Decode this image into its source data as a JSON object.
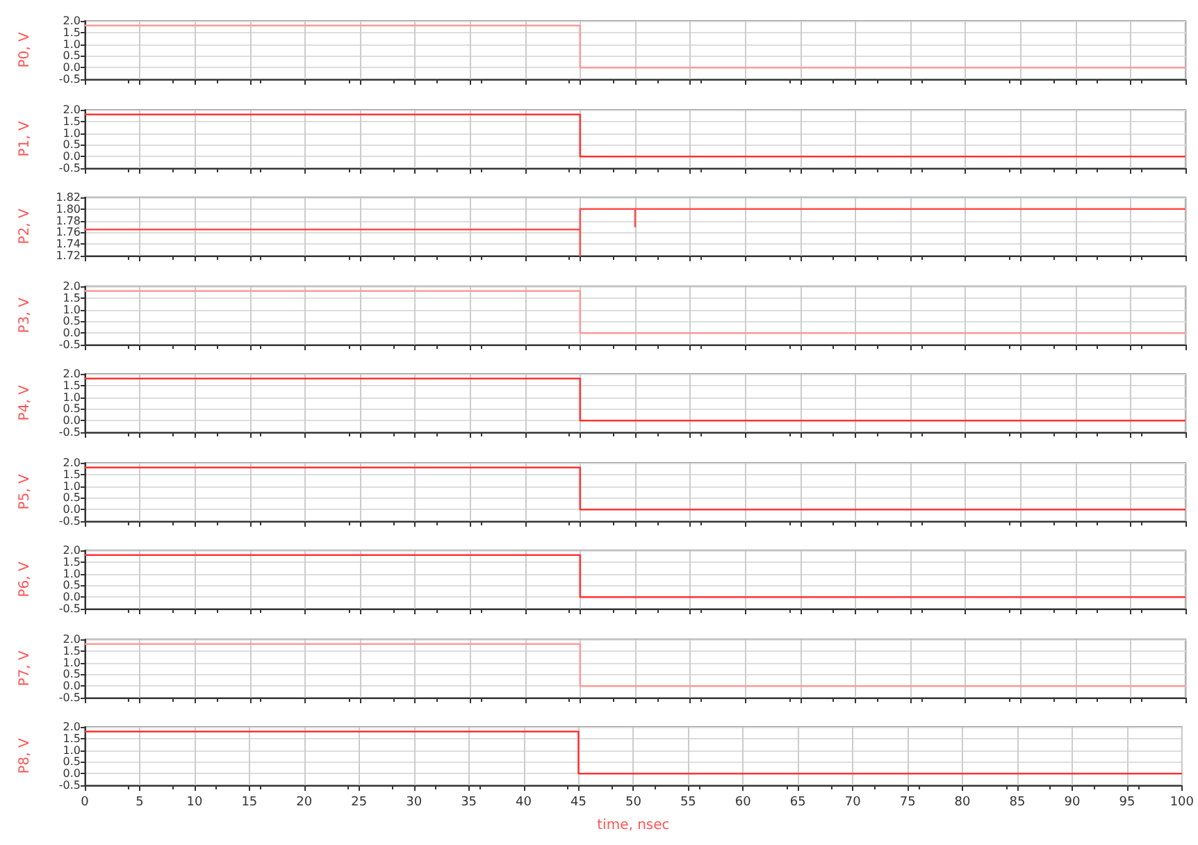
{
  "chart_data": [
    {
      "type": "line",
      "ylabel": "P0, V",
      "x": [
        0,
        45,
        45,
        100
      ],
      "series": [
        {
          "color": "#ff9999",
          "values": [
            1.8,
            1.8,
            0,
            0
          ]
        }
      ],
      "xlim": [
        0,
        100
      ],
      "xticks": [
        0,
        5,
        10,
        15,
        20,
        25,
        30,
        35,
        40,
        45,
        50,
        55,
        60,
        65,
        70,
        75,
        80,
        85,
        90,
        95,
        100
      ],
      "ylim": [
        -0.5,
        2.0
      ],
      "yticks": [
        {
          "value": -0.5,
          "label": "-0.5"
        },
        {
          "value": 0,
          "label": "0.0"
        },
        {
          "value": 0.5,
          "label": "0.5"
        },
        {
          "value": 1,
          "label": "1.0"
        },
        {
          "value": 1.5,
          "label": "1.5"
        },
        {
          "value": 2,
          "label": "2.0"
        }
      ],
      "grid": true,
      "tick_labels": "y"
    },
    {
      "type": "line",
      "ylabel": "P1, V",
      "x": [
        0,
        45,
        45,
        100
      ],
      "series": [
        {
          "color": "#ff3333",
          "values": [
            1.8,
            1.8,
            0,
            0
          ]
        }
      ],
      "xlim": [
        0,
        100
      ],
      "xticks": [
        0,
        5,
        10,
        15,
        20,
        25,
        30,
        35,
        40,
        45,
        50,
        55,
        60,
        65,
        70,
        75,
        80,
        85,
        90,
        95,
        100
      ],
      "ylim": [
        -0.5,
        2.0
      ],
      "yticks": [
        {
          "value": -0.5,
          "label": "-0.5"
        },
        {
          "value": 0,
          "label": "0.0"
        },
        {
          "value": 0.5,
          "label": "0.5"
        },
        {
          "value": 1,
          "label": "1.0"
        },
        {
          "value": 1.5,
          "label": "1.5"
        },
        {
          "value": 2,
          "label": "2.0"
        }
      ],
      "grid": true,
      "tick_labels": "y"
    },
    {
      "type": "line",
      "ylabel": "P2, V",
      "x": [
        0,
        45,
        45,
        45,
        50,
        50,
        50,
        100
      ],
      "series": [
        {
          "color": "#ff4d4d",
          "values": [
            1.765,
            1.765,
            1.72,
            1.8,
            1.8,
            1.77,
            1.8,
            1.8
          ]
        }
      ],
      "xlim": [
        0,
        100
      ],
      "xticks": [
        0,
        5,
        10,
        15,
        20,
        25,
        30,
        35,
        40,
        45,
        50,
        55,
        60,
        65,
        70,
        75,
        80,
        85,
        90,
        95,
        100
      ],
      "ylim": [
        1.72,
        1.82
      ],
      "yticks": [
        {
          "value": 1.72,
          "label": "1.72"
        },
        {
          "value": 1.74,
          "label": "1.74"
        },
        {
          "value": 1.76,
          "label": "1.76"
        },
        {
          "value": 1.78,
          "label": "1.78"
        },
        {
          "value": 1.8,
          "label": "1.80"
        },
        {
          "value": 1.82,
          "label": "1.82"
        }
      ],
      "grid": true,
      "tick_labels": "y"
    },
    {
      "type": "line",
      "ylabel": "P3, V",
      "x": [
        0,
        45,
        45,
        100
      ],
      "series": [
        {
          "color": "#ff9999",
          "values": [
            1.8,
            1.8,
            0,
            0
          ]
        }
      ],
      "xlim": [
        0,
        100
      ],
      "xticks": [
        0,
        5,
        10,
        15,
        20,
        25,
        30,
        35,
        40,
        45,
        50,
        55,
        60,
        65,
        70,
        75,
        80,
        85,
        90,
        95,
        100
      ],
      "ylim": [
        -0.5,
        2.0
      ],
      "yticks": [
        {
          "value": -0.5,
          "label": "-0.5"
        },
        {
          "value": 0,
          "label": "0.0"
        },
        {
          "value": 0.5,
          "label": "0.5"
        },
        {
          "value": 1,
          "label": "1.0"
        },
        {
          "value": 1.5,
          "label": "1.5"
        },
        {
          "value": 2,
          "label": "2.0"
        }
      ],
      "grid": true,
      "tick_labels": "y"
    },
    {
      "type": "line",
      "ylabel": "P4, V",
      "x": [
        0,
        45,
        45,
        100
      ],
      "series": [
        {
          "color": "#ff3333",
          "values": [
            1.8,
            1.8,
            0,
            0
          ]
        }
      ],
      "xlim": [
        0,
        100
      ],
      "xticks": [
        0,
        5,
        10,
        15,
        20,
        25,
        30,
        35,
        40,
        45,
        50,
        55,
        60,
        65,
        70,
        75,
        80,
        85,
        90,
        95,
        100
      ],
      "ylim": [
        -0.5,
        2.0
      ],
      "yticks": [
        {
          "value": -0.5,
          "label": "-0.5"
        },
        {
          "value": 0,
          "label": "0.0"
        },
        {
          "value": 0.5,
          "label": "0.5"
        },
        {
          "value": 1,
          "label": "1.0"
        },
        {
          "value": 1.5,
          "label": "1.5"
        },
        {
          "value": 2,
          "label": "2.0"
        }
      ],
      "grid": true,
      "tick_labels": "y"
    },
    {
      "type": "line",
      "ylabel": "P5, V",
      "x": [
        0,
        45,
        45,
        100
      ],
      "series": [
        {
          "color": "#ff3333",
          "values": [
            1.8,
            1.8,
            0,
            0
          ]
        }
      ],
      "xlim": [
        0,
        100
      ],
      "xticks": [
        0,
        5,
        10,
        15,
        20,
        25,
        30,
        35,
        40,
        45,
        50,
        55,
        60,
        65,
        70,
        75,
        80,
        85,
        90,
        95,
        100
      ],
      "ylim": [
        -0.5,
        2.0
      ],
      "yticks": [
        {
          "value": -0.5,
          "label": "-0.5"
        },
        {
          "value": 0,
          "label": "0.0"
        },
        {
          "value": 0.5,
          "label": "0.5"
        },
        {
          "value": 1,
          "label": "1.0"
        },
        {
          "value": 1.5,
          "label": "1.5"
        },
        {
          "value": 2,
          "label": "2.0"
        }
      ],
      "grid": true,
      "tick_labels": "y"
    },
    {
      "type": "line",
      "ylabel": "P6, V",
      "x": [
        0,
        45,
        45,
        100
      ],
      "series": [
        {
          "color": "#ff3333",
          "values": [
            1.8,
            1.8,
            0,
            0
          ]
        }
      ],
      "xlim": [
        0,
        100
      ],
      "xticks": [
        0,
        5,
        10,
        15,
        20,
        25,
        30,
        35,
        40,
        45,
        50,
        55,
        60,
        65,
        70,
        75,
        80,
        85,
        90,
        95,
        100
      ],
      "ylim": [
        -0.5,
        2.0
      ],
      "yticks": [
        {
          "value": -0.5,
          "label": "-0.5"
        },
        {
          "value": 0,
          "label": "0.0"
        },
        {
          "value": 0.5,
          "label": "0.5"
        },
        {
          "value": 1,
          "label": "1.0"
        },
        {
          "value": 1.5,
          "label": "1.5"
        },
        {
          "value": 2,
          "label": "2.0"
        }
      ],
      "grid": true,
      "tick_labels": "y"
    },
    {
      "type": "line",
      "ylabel": "P7, V",
      "x": [
        0,
        45,
        45,
        100
      ],
      "series": [
        {
          "color": "#ff9999",
          "values": [
            1.8,
            1.8,
            0,
            0
          ]
        }
      ],
      "xlim": [
        0,
        100
      ],
      "xticks": [
        0,
        5,
        10,
        15,
        20,
        25,
        30,
        35,
        40,
        45,
        50,
        55,
        60,
        65,
        70,
        75,
        80,
        85,
        90,
        95,
        100
      ],
      "ylim": [
        -0.5,
        2.0
      ],
      "yticks": [
        {
          "value": -0.5,
          "label": "-0.5"
        },
        {
          "value": 0,
          "label": "0.0"
        },
        {
          "value": 0.5,
          "label": "0.5"
        },
        {
          "value": 1,
          "label": "1.0"
        },
        {
          "value": 1.5,
          "label": "1.5"
        },
        {
          "value": 2,
          "label": "2.0"
        }
      ],
      "grid": true,
      "tick_labels": "y"
    },
    {
      "type": "line",
      "ylabel": "P8, V",
      "xlabel": "time, nsec",
      "x": [
        0,
        45,
        45,
        100
      ],
      "series": [
        {
          "color": "#ff3333",
          "values": [
            1.8,
            1.8,
            0,
            0
          ]
        }
      ],
      "xlim": [
        0,
        100
      ],
      "xticks": [
        0,
        5,
        10,
        15,
        20,
        25,
        30,
        35,
        40,
        45,
        50,
        55,
        60,
        65,
        70,
        75,
        80,
        85,
        90,
        95,
        100
      ],
      "ylim": [
        -0.5,
        2.0
      ],
      "yticks": [
        {
          "value": -0.5,
          "label": "-0.5"
        },
        {
          "value": 0,
          "label": "0.0"
        },
        {
          "value": 0.5,
          "label": "0.5"
        },
        {
          "value": 1,
          "label": "1.0"
        },
        {
          "value": 1.5,
          "label": "1.5"
        },
        {
          "value": 2,
          "label": "2.0"
        }
      ],
      "grid": true
    }
  ]
}
